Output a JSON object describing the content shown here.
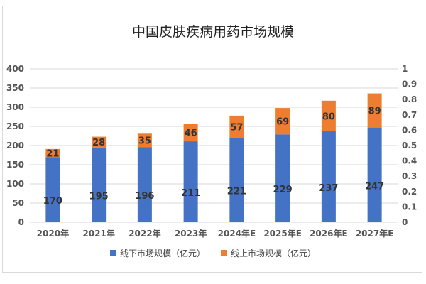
{
  "chart_data": {
    "type": "bar",
    "stacked": true,
    "title": "中国皮肤疾病用药市场规模",
    "categories": [
      "2020年",
      "2021年",
      "2022年",
      "2023年",
      "2024年E",
      "2025年E",
      "2026年E",
      "2027年E"
    ],
    "series": [
      {
        "name": "线下市场规模（亿元）",
        "color": "#4472C4",
        "values": [
          170,
          195,
          196,
          211,
          221,
          229,
          237,
          247
        ]
      },
      {
        "name": "线上市场规模（亿元）",
        "color": "#ED7D31",
        "values": [
          21,
          28,
          35,
          46,
          57,
          69,
          80,
          89
        ]
      }
    ],
    "ylim": [
      0,
      400
    ],
    "yticks": [
      "0",
      "50",
      "100",
      "150",
      "200",
      "250",
      "300",
      "350",
      "400"
    ],
    "y2lim": [
      0,
      1
    ],
    "y2ticks": [
      "0",
      "0.1",
      "0.2",
      "0.3",
      "0.4",
      "0.5",
      "0.6",
      "0.7",
      "0.8",
      "0.9",
      "1"
    ],
    "grid": true,
    "legend": "bottom"
  }
}
